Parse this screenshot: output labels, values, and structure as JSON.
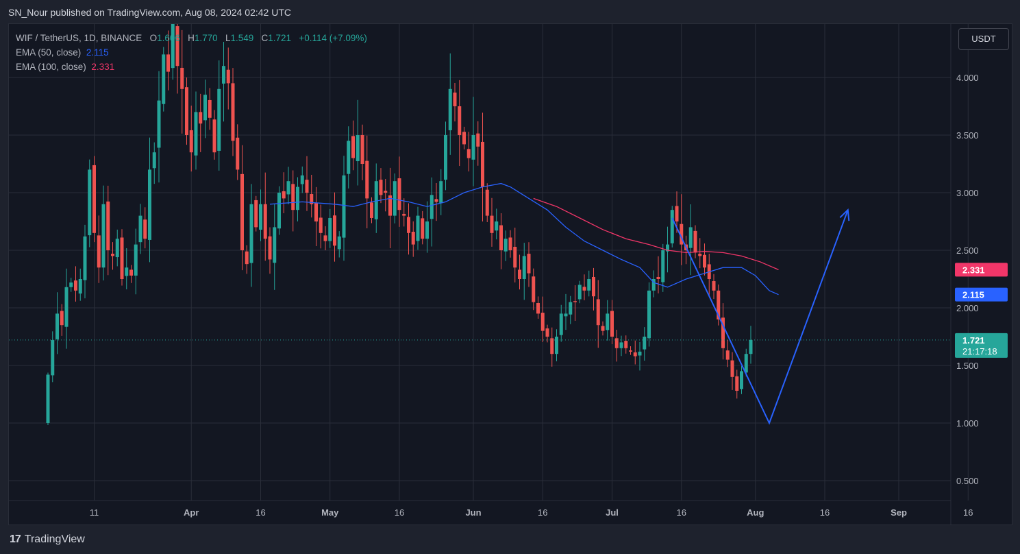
{
  "header": {
    "published": "SN_Nour published on TradingView.com, Aug 08, 2024 02:42 UTC"
  },
  "legend": {
    "symbol": "WIF / TetherUS, 1D, BINANCE",
    "o_label": "O",
    "o_value": "1.606",
    "h_label": "H",
    "h_value": "1.770",
    "l_label": "L",
    "l_value": "1.549",
    "c_label": "C",
    "c_value": "1.721",
    "change": "+0.114 (+7.09%)",
    "ema50_label": "EMA (50, close)",
    "ema50_value": "2.115",
    "ema100_label": "EMA (100, close)",
    "ema100_value": "2.331"
  },
  "currency_button": "USDT",
  "footer": {
    "logo_mark": "17",
    "logo_text": "TradingView"
  },
  "colors": {
    "up": "#26a69a",
    "down": "#ef5350",
    "ema50": "#2962ff",
    "ema100": "#f23669",
    "annotation": "#2962ff",
    "grid": "#2a2e39",
    "background": "#131722"
  },
  "chart_data": {
    "type": "candlestick",
    "x_tick_labels": [
      "11",
      "Apr",
      "16",
      "May",
      "16",
      "Jun",
      "16",
      "Jul",
      "16",
      "Aug",
      "16",
      "Sep",
      "16"
    ],
    "y_tick_labels": [
      "0.500",
      "1.000",
      "1.500",
      "2.000",
      "2.500",
      "3.000",
      "3.500",
      "4.000"
    ],
    "y_ticks": [
      0.5,
      1.0,
      1.5,
      2.0,
      2.5,
      3.0,
      3.5,
      4.0
    ],
    "ylim": [
      0.3,
      4.6
    ],
    "x_range_days": [
      -4,
      185
    ],
    "x_tick_days": [
      10,
      31,
      46,
      61,
      76,
      92,
      107,
      122,
      137,
      153,
      168,
      184,
      199
    ],
    "last_price": "1.721",
    "last_price_value": 1.721,
    "countdown": "21:17:18",
    "ema50_tag": "2.115",
    "ema100_tag": "2.331",
    "closes": [
      1.42,
      1.72,
      1.95,
      1.85,
      2.18,
      2.22,
      2.15,
      2.25,
      2.62,
      3.2,
      2.65,
      2.35,
      2.9,
      2.5,
      2.45,
      2.6,
      2.25,
      2.35,
      2.28,
      2.55,
      2.8,
      2.6,
      3.2,
      3.35,
      3.8,
      4.2,
      4.05,
      4.5,
      4.1,
      3.9,
      3.5,
      3.35,
      3.7,
      3.6,
      3.85,
      3.65,
      3.35,
      3.9,
      4.1,
      3.95,
      3.45,
      3.2,
      2.5,
      2.38,
      2.9,
      2.7,
      2.9,
      2.6,
      2.42,
      2.7,
      3.0,
      2.95,
      3.1,
      2.85,
      3.05,
      3.15,
      3.0,
      2.9,
      2.75,
      2.65,
      2.58,
      2.78,
      2.54,
      2.62,
      3.15,
      3.45,
      3.3,
      3.5,
      3.25,
      2.95,
      2.78,
      3.1,
      2.98,
      3.0,
      2.8,
      3.1,
      2.85,
      2.8,
      2.65,
      2.55,
      2.8,
      2.6,
      2.75,
      2.98,
      2.92,
      3.1,
      3.5,
      3.9,
      3.75,
      3.5,
      3.42,
      3.3,
      3.5,
      3.4,
      3.05,
      2.8,
      2.65,
      2.75,
      2.5,
      2.6,
      2.5,
      2.35,
      2.25,
      2.45,
      2.3,
      2.05,
      1.95,
      1.8,
      1.75,
      1.6,
      1.75,
      1.95,
      1.95,
      2.05,
      2.05,
      2.2,
      2.15,
      2.25,
      2.1,
      1.85,
      1.8,
      1.95,
      1.75,
      1.65,
      1.7,
      1.65,
      1.62,
      1.58,
      1.62,
      1.75,
      2.15,
      2.25,
      2.25,
      2.5,
      2.55,
      2.85,
      2.75,
      2.55,
      2.5,
      2.7,
      2.48,
      2.45,
      2.35,
      2.25,
      2.15,
      1.9,
      1.65,
      1.55,
      1.4,
      1.28,
      1.45,
      1.6,
      1.721
    ],
    "ema50": [
      [
        48,
        2.9
      ],
      [
        55,
        2.92
      ],
      [
        62,
        2.9
      ],
      [
        66,
        2.88
      ],
      [
        70,
        2.92
      ],
      [
        74,
        2.95
      ],
      [
        78,
        2.92
      ],
      [
        82,
        2.88
      ],
      [
        86,
        2.92
      ],
      [
        90,
        3.0
      ],
      [
        94,
        3.05
      ],
      [
        98,
        3.08
      ],
      [
        100,
        3.05
      ],
      [
        104,
        2.95
      ],
      [
        108,
        2.85
      ],
      [
        112,
        2.7
      ],
      [
        116,
        2.58
      ],
      [
        120,
        2.5
      ],
      [
        124,
        2.42
      ],
      [
        128,
        2.35
      ],
      [
        131,
        2.22
      ],
      [
        134,
        2.18
      ],
      [
        138,
        2.25
      ],
      [
        142,
        2.3
      ],
      [
        146,
        2.35
      ],
      [
        150,
        2.35
      ],
      [
        153,
        2.28
      ],
      [
        156,
        2.15
      ],
      [
        158,
        2.115
      ]
    ],
    "ema100": [
      [
        105,
        2.95
      ],
      [
        110,
        2.88
      ],
      [
        115,
        2.78
      ],
      [
        120,
        2.68
      ],
      [
        125,
        2.6
      ],
      [
        130,
        2.55
      ],
      [
        134,
        2.5
      ],
      [
        138,
        2.48
      ],
      [
        142,
        2.49
      ],
      [
        146,
        2.48
      ],
      [
        150,
        2.45
      ],
      [
        154,
        2.4
      ],
      [
        158,
        2.331
      ]
    ],
    "annotation": [
      [
        135,
        2.78
      ],
      [
        156,
        1.0
      ],
      [
        173,
        2.85
      ]
    ]
  }
}
